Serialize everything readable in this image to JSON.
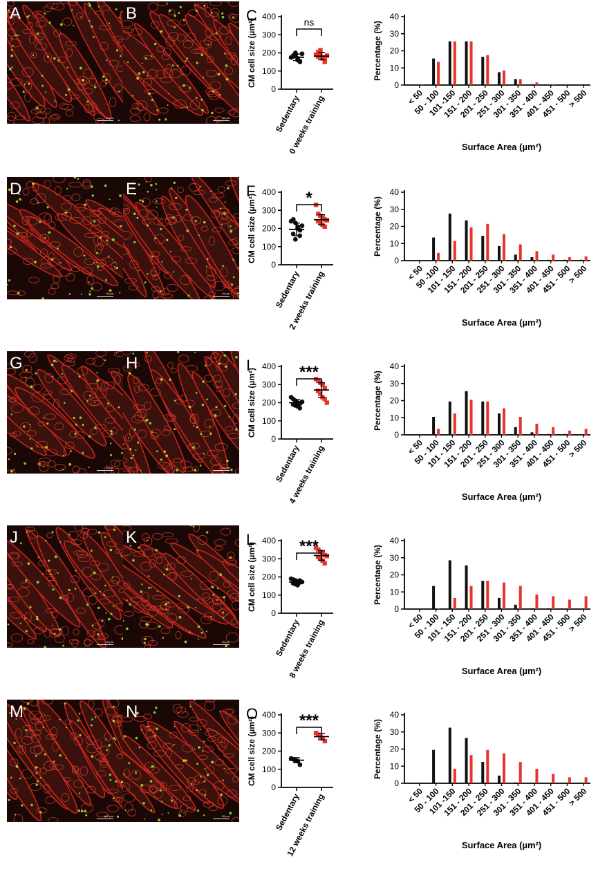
{
  "colors": {
    "sedentary": "#111111",
    "training": "#e8342a",
    "tissue_red": "#c8231b",
    "tissue_green": "#8fe03a",
    "background_dark": "#1a0806"
  },
  "rows": [
    {
      "micro_labels": [
        "A",
        "B"
      ],
      "scale_labels": [
        "10 µm",
        "10 µm"
      ],
      "dot_label": "C",
      "significance": "ns",
      "groups": [
        "Sedentary",
        "0 weeks training"
      ],
      "chart_data": [
        {
          "type": "scatter",
          "ylabel": "CM cell size (µm²)",
          "ylim": [
            0,
            400
          ],
          "yticks": [
            0,
            100,
            200,
            300,
            400
          ],
          "categories": [
            "Sedentary",
            "0 weeks training"
          ],
          "series": [
            {
              "name": "Sedentary",
              "values": [
                175,
                185,
                190,
                160,
                150,
                180,
                200,
                170,
                155,
                195
              ],
              "mean": 176,
              "sd": 18
            },
            {
              "name": "0 weeks training",
              "values": [
                190,
                205,
                215,
                175,
                160,
                180,
                195,
                170,
                150,
                185
              ],
              "mean": 182,
              "sd": 20
            }
          ]
        },
        {
          "type": "bar",
          "xlabel": "Surface Area (µm²)",
          "ylabel": "Percentage (%)",
          "ylim": [
            0,
            40
          ],
          "yticks": [
            0,
            10,
            20,
            30,
            40
          ],
          "categories": [
            "< 50",
            "50 - 100",
            "101 -150",
            "151 - 200",
            "201 - 250",
            "251 - 300",
            "301 - 350",
            "351 - 400",
            "401 - 450",
            "451 - 500",
            "> 500"
          ],
          "series": [
            {
              "values": [
                0,
                15.5,
                25.5,
                25.5,
                16.5,
                7.5,
                3.5,
                0.5,
                0,
                0,
                0
              ]
            },
            {
              "values": [
                0.5,
                13.5,
                25.5,
                25.5,
                17.5,
                8.5,
                3.5,
                1.5,
                0.5,
                0,
                0
              ]
            }
          ]
        }
      ]
    },
    {
      "micro_labels": [
        "D",
        "E"
      ],
      "scale_labels": [
        "10 µm",
        "10 µm"
      ],
      "dot_label": "F",
      "significance": "*",
      "groups": [
        "Sedentary",
        "2 weeks training"
      ],
      "chart_data": [
        {
          "type": "scatter",
          "ylabel": "CM cell size (µm²)",
          "ylim": [
            0,
            400
          ],
          "yticks": [
            0,
            100,
            200,
            300,
            400
          ],
          "categories": [
            "Sedentary",
            "2 weeks training"
          ],
          "series": [
            {
              "name": "Sedentary",
              "values": [
                240,
                250,
                230,
                210,
                190,
                170,
                140,
                200,
                160,
                215
              ],
              "mean": 195,
              "sd": 35
            },
            {
              "name": "2 weeks training",
              "values": [
                330,
                280,
                270,
                260,
                250,
                240,
                230,
                220,
                210,
                245
              ],
              "mean": 248,
              "sd": 28
            }
          ]
        },
        {
          "type": "bar",
          "xlabel": "Surface Area (µm²)",
          "ylabel": "Percentage (%)",
          "ylim": [
            0,
            40
          ],
          "yticks": [
            0,
            10,
            20,
            30,
            40
          ],
          "categories": [
            "< 50",
            "50 -100",
            "101 - 150",
            "151 - 200",
            "201 - 250",
            "251 - 300",
            "301 - 350",
            "351 - 400",
            "401 - 450",
            "451 - 500",
            "> 500"
          ],
          "series": [
            {
              "values": [
                0,
                13.5,
                27.5,
                23.5,
                14.5,
                8.5,
                3.5,
                2,
                0.5,
                0.5,
                0.5
              ]
            },
            {
              "values": [
                0,
                4.5,
                11.5,
                19.5,
                21.5,
                15.5,
                9.5,
                5.5,
                3.5,
                2,
                2.5
              ]
            }
          ]
        }
      ]
    },
    {
      "micro_labels": [
        "G",
        "H"
      ],
      "scale_labels": [
        "10 µm",
        "10 µm"
      ],
      "dot_label": "I",
      "significance": "***",
      "groups": [
        "Sedentary",
        "4 weeks training"
      ],
      "chart_data": [
        {
          "type": "scatter",
          "ylabel": "CM cell size (µm²)",
          "ylim": [
            0,
            400
          ],
          "yticks": [
            0,
            100,
            200,
            300,
            400
          ],
          "categories": [
            "Sedentary",
            "4 weeks training"
          ],
          "series": [
            {
              "name": "Sedentary",
              "values": [
                230,
                220,
                210,
                200,
                195,
                190,
                185,
                180,
                170,
                205
              ],
              "mean": 200,
              "sd": 17
            },
            {
              "name": "4 weeks training",
              "values": [
                330,
                320,
                310,
                300,
                280,
                265,
                250,
                230,
                220,
                200
              ],
              "mean": 270,
              "sd": 40
            }
          ]
        },
        {
          "type": "bar",
          "xlabel": "Surface Area (µm²)",
          "ylabel": "Percentage (%)",
          "ylim": [
            0,
            40
          ],
          "yticks": [
            0,
            10,
            20,
            30,
            40
          ],
          "categories": [
            "< 50",
            "50 - 100",
            "101 - 150",
            "151 - 200",
            "201 - 250",
            "251 - 300",
            "301 - 350",
            "351 - 400",
            "401 - 450",
            "451 - 500",
            "> 500"
          ],
          "series": [
            {
              "values": [
                0,
                10.5,
                19.5,
                25.5,
                19.5,
                12.5,
                4.5,
                1.5,
                0.5,
                0.5,
                0
              ]
            },
            {
              "values": [
                0,
                3.5,
                12.5,
                20.5,
                19.5,
                15.5,
                10.5,
                6.5,
                4.5,
                2.5,
                3.5
              ]
            }
          ]
        }
      ]
    },
    {
      "micro_labels": [
        "J",
        "K"
      ],
      "scale_labels": [
        "10 µm",
        "10 µm"
      ],
      "dot_label": "L",
      "significance": "***",
      "groups": [
        "Sedentary",
        "8 weeks training"
      ],
      "chart_data": [
        {
          "type": "scatter",
          "ylabel": "CM cell size (µm²)",
          "ylim": [
            0,
            400
          ],
          "yticks": [
            0,
            100,
            200,
            300,
            400
          ],
          "categories": [
            "Sedentary",
            "8 weeks training"
          ],
          "series": [
            {
              "name": "Sedentary",
              "values": [
                190,
                185,
                180,
                175,
                170,
                165,
                160,
                155,
                180,
                172
              ],
              "mean": 172,
              "sd": 12
            },
            {
              "name": "8 weeks training",
              "values": [
                360,
                350,
                340,
                330,
                320,
                310,
                300,
                290,
                275,
                315
              ],
              "mean": 318,
              "sd": 26
            }
          ]
        },
        {
          "type": "bar",
          "xlabel": "Surface Area (µm²)",
          "ylabel": "Percentage (%)",
          "ylim": [
            0,
            40
          ],
          "yticks": [
            0,
            10,
            20,
            30,
            40
          ],
          "categories": [
            "< 50",
            "50 - 100",
            "101 - 150",
            "151 - 200",
            "201 - 250",
            "251 - 300",
            "301 - 350",
            "351 - 400",
            "401 - 450",
            "451 - 500",
            "> 500"
          ],
          "series": [
            {
              "values": [
                0,
                13.5,
                28.5,
                25.5,
                16.5,
                6.5,
                2.5,
                0.5,
                0.5,
                0,
                0
              ]
            },
            {
              "values": [
                0,
                0.5,
                6.5,
                13.5,
                16.5,
                15.5,
                13.5,
                8.5,
                7.5,
                5.5,
                7.5
              ]
            }
          ]
        }
      ]
    },
    {
      "micro_labels": [
        "M",
        "N"
      ],
      "scale_labels": [
        "10 µm",
        "10 µm"
      ],
      "dot_label": "O",
      "significance": "***",
      "groups": [
        "Sedentary",
        "12 weeks training"
      ],
      "chart_data": [
        {
          "type": "scatter",
          "ylabel": "CM cell size (µm²)",
          "ylim": [
            0,
            400
          ],
          "yticks": [
            0,
            100,
            200,
            300,
            400
          ],
          "categories": [
            "Sedentary",
            "12 weeks training"
          ],
          "series": [
            {
              "name": "Sedentary",
              "values": [
                160,
                155,
                150,
                145,
                125
              ],
              "mean": 150,
              "sd": 14
            },
            {
              "name": "12 weeks training",
              "values": [
                300,
                290,
                280,
                270,
                255
              ],
              "mean": 280,
              "sd": 17
            }
          ]
        },
        {
          "type": "bar",
          "xlabel": "Surface Area (µm²)",
          "ylabel": "Percentage (%)",
          "ylim": [
            0,
            40
          ],
          "yticks": [
            0,
            10,
            20,
            30,
            40
          ],
          "categories": [
            "< 50",
            "50 - 100",
            "101 -150",
            "151 - 200",
            "201 - 250",
            "251 - 300",
            "301 - 350",
            "351 - 400",
            "401 - 450",
            "451 - 500",
            "> 500"
          ],
          "series": [
            {
              "values": [
                0,
                19.5,
                32.5,
                26.5,
                12.5,
                4.5,
                0.5,
                0,
                0,
                0,
                0
              ]
            },
            {
              "values": [
                0,
                0.5,
                8.5,
                16.5,
                19.5,
                17.5,
                12.5,
                8.5,
                5.5,
                3.5,
                3.5
              ]
            }
          ]
        }
      ]
    }
  ]
}
